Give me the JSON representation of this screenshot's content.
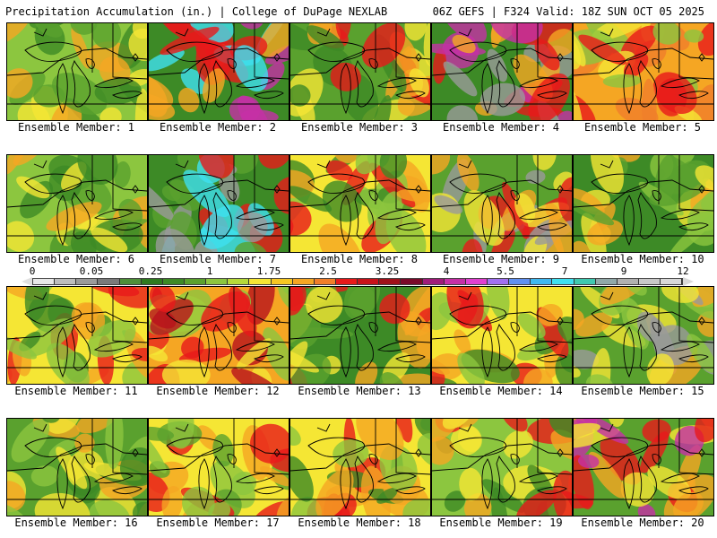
{
  "header": {
    "left_title": "Precipitation Accumulation (in.) | College of DuPage NEXLAB",
    "right_title": "06Z GEFS | F324 Valid: 18Z SUN OCT 05 2025"
  },
  "members": [
    {
      "label": "Ensemble Member: 1",
      "palette": [
        "#8cc63f",
        "#f5e634",
        "#5aa12e",
        "#f5a623",
        "#3d8a26"
      ]
    },
    {
      "label": "Ensemble Member: 2",
      "palette": [
        "#3d8a26",
        "#f5a623",
        "#e8191a",
        "#c62fa6",
        "#3fe0f0"
      ]
    },
    {
      "label": "Ensemble Member: 3",
      "palette": [
        "#5aa12e",
        "#f5e634",
        "#3d8a26",
        "#f5a623",
        "#e8191a"
      ]
    },
    {
      "label": "Ensemble Member: 4",
      "palette": [
        "#3d8a26",
        "#9a9a9a",
        "#f5a623",
        "#e8191a",
        "#c62fa6"
      ]
    },
    {
      "label": "Ensemble Member: 5",
      "palette": [
        "#f5a623",
        "#f5e634",
        "#e8191a",
        "#8cc63f",
        "#f07e2a"
      ]
    },
    {
      "label": "Ensemble Member: 6",
      "palette": [
        "#8cc63f",
        "#3d8a26",
        "#f5e634",
        "#5aa12e",
        "#f5a623"
      ]
    },
    {
      "label": "Ensemble Member: 7",
      "palette": [
        "#3d8a26",
        "#9a9a9a",
        "#5aa12e",
        "#e8191a",
        "#3fe0f0"
      ]
    },
    {
      "label": "Ensemble Member: 8",
      "palette": [
        "#f5e634",
        "#8cc63f",
        "#3d8a26",
        "#f5a623",
        "#e8191a"
      ]
    },
    {
      "label": "Ensemble Member: 9",
      "palette": [
        "#5aa12e",
        "#f5e634",
        "#9a9a9a",
        "#f5a623",
        "#e8191a"
      ]
    },
    {
      "label": "Ensemble Member: 10",
      "palette": [
        "#3d8a26",
        "#8cc63f",
        "#5aa12e",
        "#f5e634",
        "#f5a623"
      ]
    },
    {
      "label": "Ensemble Member: 11",
      "palette": [
        "#f5e634",
        "#f5a623",
        "#8cc63f",
        "#e8191a",
        "#3d8a26"
      ]
    },
    {
      "label": "Ensemble Member: 12",
      "palette": [
        "#f5a623",
        "#e8191a",
        "#f5e634",
        "#8cc63f",
        "#b8121b"
      ]
    },
    {
      "label": "Ensemble Member: 13",
      "palette": [
        "#3d8a26",
        "#5aa12e",
        "#f5e634",
        "#f5a623",
        "#e8191a"
      ]
    },
    {
      "label": "Ensemble Member: 14",
      "palette": [
        "#f5e634",
        "#8cc63f",
        "#f5a623",
        "#3d8a26",
        "#e8191a"
      ]
    },
    {
      "label": "Ensemble Member: 15",
      "palette": [
        "#5aa12e",
        "#8cc63f",
        "#f5e634",
        "#f5a623",
        "#9a9a9a"
      ]
    },
    {
      "label": "Ensemble Member: 16",
      "palette": [
        "#5aa12e",
        "#f5e634",
        "#8cc63f",
        "#f5a623",
        "#3d8a26"
      ]
    },
    {
      "label": "Ensemble Member: 17",
      "palette": [
        "#f5e634",
        "#8cc63f",
        "#f5a623",
        "#5aa12e",
        "#e8191a"
      ]
    },
    {
      "label": "Ensemble Member: 18",
      "palette": [
        "#f5e634",
        "#f5a623",
        "#8cc63f",
        "#3d8a26",
        "#e8191a"
      ]
    },
    {
      "label": "Ensemble Member: 19",
      "palette": [
        "#8cc63f",
        "#f5e634",
        "#3d8a26",
        "#f5a623",
        "#e8191a"
      ]
    },
    {
      "label": "Ensemble Member: 20",
      "palette": [
        "#5aa12e",
        "#f5a623",
        "#e8191a",
        "#c62fa6",
        "#f5e634"
      ]
    }
  ],
  "legend": {
    "ticks": [
      "0",
      "0.05",
      "0.25",
      "1",
      "1.75",
      "2.5",
      "3.25",
      "4",
      "5.5",
      "7",
      "9",
      "12"
    ],
    "colors": [
      "#e8e8e8",
      "#bdbdbd",
      "#9a9a9a",
      "#7a7a7a",
      "#4f8f3a",
      "#2f7a1f",
      "#3d8a26",
      "#5aa12e",
      "#8cc63f",
      "#b6d93a",
      "#f5e634",
      "#f5c623",
      "#f5a623",
      "#f07e2a",
      "#e8191a",
      "#c8121a",
      "#a0101a",
      "#7a0a2a",
      "#a01b7a",
      "#c62fa6",
      "#e040d0",
      "#a070f0",
      "#6090f0",
      "#40b8f0",
      "#3fe0f0",
      "#40c8b0",
      "#90a8a8",
      "#b0b0b0",
      "#c8c8c8",
      "#d8d8d8"
    ]
  }
}
